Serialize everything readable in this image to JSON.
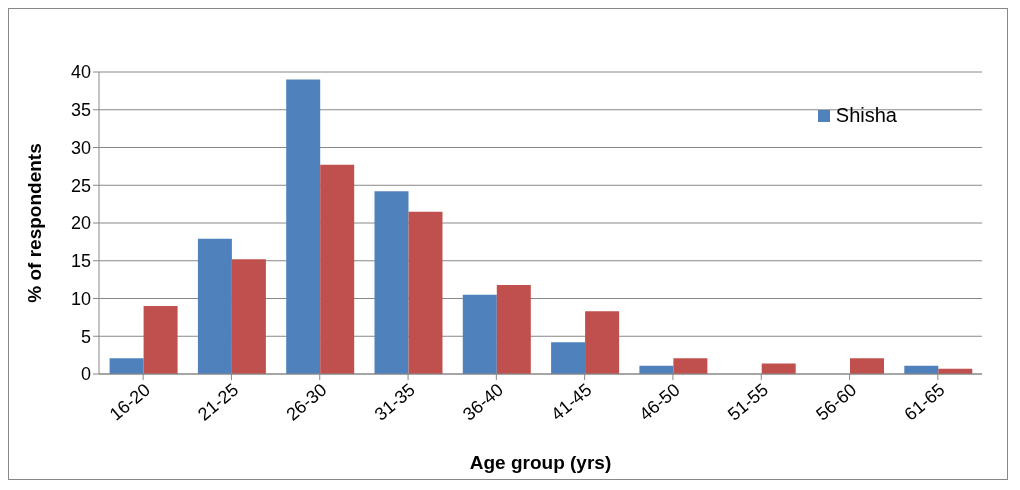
{
  "chart_data": {
    "type": "bar",
    "xlabel": "Age group (yrs)",
    "ylabel": "% of respondents",
    "categories": [
      "16-20",
      "21-25",
      "26-30",
      "31-35",
      "36-40",
      "41-45",
      "46-50",
      "51-55",
      "56-60",
      "61-65"
    ],
    "series": [
      {
        "name": "Shisha",
        "color": "#4f81bd",
        "values": [
          2.1,
          17.9,
          39,
          24.2,
          10.5,
          4.2,
          1.1,
          0,
          0,
          1.1
        ]
      },
      {
        "color": "#c0504d",
        "values": [
          9.0,
          15.2,
          27.7,
          21.5,
          11.8,
          8.3,
          2.1,
          1.4,
          2.1,
          0.7
        ]
      }
    ],
    "ylim": [
      0,
      40
    ],
    "yticks": [
      0,
      5,
      10,
      15,
      20,
      25,
      30,
      35,
      40
    ],
    "grid": "y",
    "legend": "top right"
  }
}
